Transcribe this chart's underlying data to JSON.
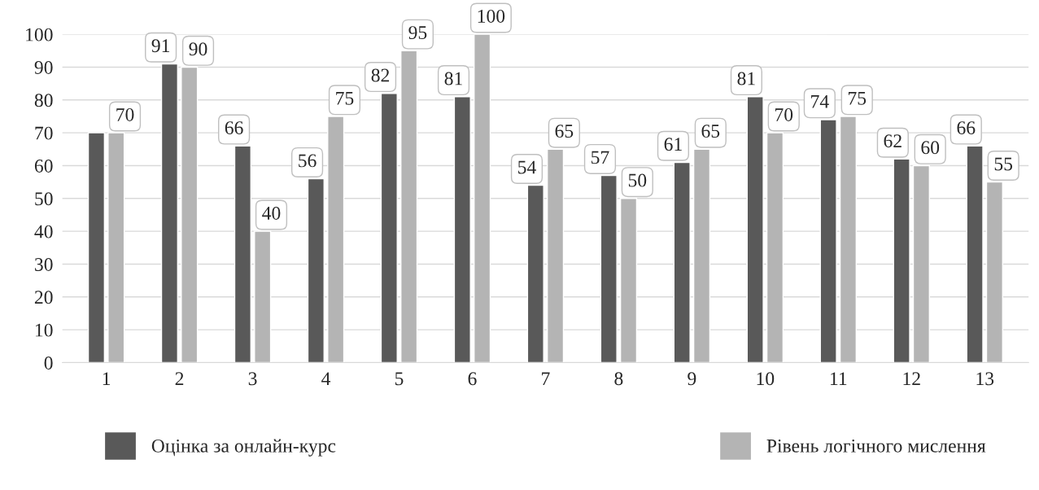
{
  "chart_data": {
    "type": "bar",
    "categories": [
      "1",
      "2",
      "3",
      "4",
      "5",
      "6",
      "7",
      "8",
      "9",
      "10",
      "11",
      "12",
      "13"
    ],
    "series": [
      {
        "name": "Оцінка за онлайн-курс",
        "color": "#595959",
        "values": [
          70,
          91,
          66,
          56,
          82,
          81,
          54,
          57,
          61,
          81,
          74,
          62,
          66
        ],
        "value_labels": [
          null,
          "91",
          "66",
          "56",
          "82",
          "81",
          "54",
          "57",
          "61",
          "81",
          "74",
          "62",
          "66"
        ]
      },
      {
        "name": "Рівень логічного мислення",
        "color": "#b4b4b4",
        "values": [
          70,
          90,
          40,
          75,
          95,
          100,
          65,
          50,
          65,
          70,
          75,
          60,
          55
        ],
        "value_labels": [
          "70",
          "90",
          "40",
          "75",
          "95",
          "100",
          "65",
          "50",
          "65",
          "70",
          "75",
          "60",
          "55"
        ]
      }
    ],
    "ylim": [
      0,
      100
    ],
    "yticks": [
      0,
      10,
      20,
      30,
      40,
      50,
      60,
      70,
      80,
      90,
      100
    ],
    "grid": "y",
    "legend": "bottom"
  }
}
